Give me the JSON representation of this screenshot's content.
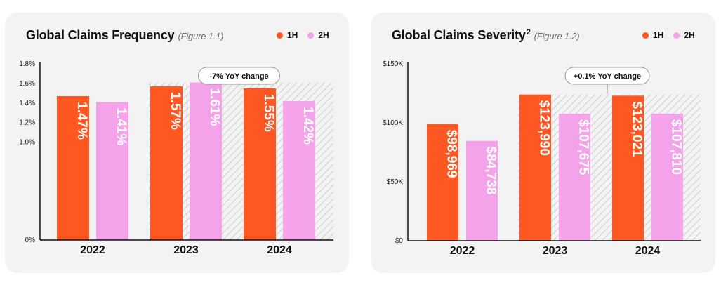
{
  "colors": {
    "h1": "#ff5722",
    "h2": "#f4a3ea",
    "card": "#f3f3f3"
  },
  "legend": {
    "h1": "1H",
    "h2": "2H"
  },
  "chart_data": [
    {
      "type": "bar",
      "title": "Global Claims Frequency",
      "figure": "(Figure 1.1)",
      "categories": [
        "2022",
        "2023",
        "2024"
      ],
      "series": [
        {
          "name": "1H",
          "values": [
            1.47,
            1.57,
            1.55
          ],
          "labels": [
            "1.47%",
            "1.57%",
            "1.55%"
          ]
        },
        {
          "name": "2H",
          "values": [
            1.41,
            1.61,
            1.42
          ],
          "labels": [
            "1.41%",
            "1.61%",
            "1.42%"
          ]
        }
      ],
      "ylim": [
        0,
        1.8
      ],
      "yticks": [
        0,
        0.2,
        0.4,
        0.6,
        0.8,
        1.0,
        1.2,
        1.4,
        1.6,
        1.8
      ],
      "ytick_labels": [
        "0%",
        "",
        "",
        "",
        "",
        "1.0%",
        "1.2%",
        "1.4%",
        "1.6%",
        "1.8%"
      ],
      "callout": "-7% YoY change",
      "band_value": 1.61,
      "legend_position": "top-right"
    },
    {
      "type": "bar",
      "title": "Global Claims Severity",
      "title_sup": "2",
      "figure": "(Figure 1.2)",
      "categories": [
        "2022",
        "2023",
        "2024"
      ],
      "series": [
        {
          "name": "1H",
          "values": [
            98969,
            123990,
            123021
          ],
          "labels": [
            "$98,969",
            "$123,990",
            "$123,021"
          ]
        },
        {
          "name": "2H",
          "values": [
            84738,
            107675,
            107810
          ],
          "labels": [
            "$84,738",
            "$107,675",
            "$107,810"
          ]
        }
      ],
      "ylim": [
        0,
        150000
      ],
      "yticks": [
        0,
        50000,
        100000,
        150000
      ],
      "ytick_labels": [
        "$0",
        "$50K",
        "$100K",
        "$150K"
      ],
      "callout": "+0.1% YoY change",
      "band_value": 123990,
      "legend_position": "top-right"
    }
  ]
}
